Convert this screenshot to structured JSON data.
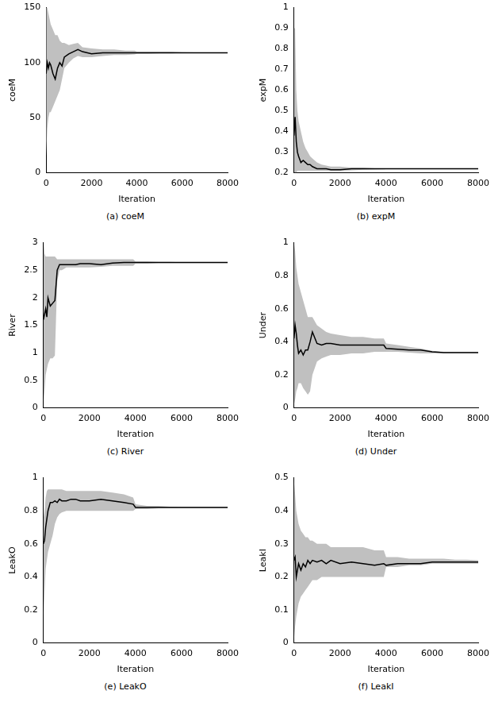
{
  "chart_data": [
    {
      "type": "line",
      "title": "(a) coeM",
      "x_label": "Iteration",
      "y_label": "coeM",
      "color": "#000000",
      "grid": false,
      "xlim": [
        0,
        8000
      ],
      "xticks": [
        0,
        2000,
        4000,
        6000,
        8000
      ],
      "ylim": [
        0,
        150
      ],
      "yticks": [
        0,
        50,
        100,
        150
      ],
      "x": [
        0,
        50,
        100,
        150,
        200,
        300,
        400,
        500,
        600,
        700,
        800,
        1000,
        1200,
        1400,
        1600,
        2000,
        2500,
        3000,
        3500,
        3900,
        4000,
        4500,
        5000,
        5500,
        6000,
        6500,
        7000,
        7500,
        8000
      ],
      "values": [
        90,
        100,
        95,
        100,
        98,
        90,
        85,
        95,
        100,
        97,
        105,
        108,
        110,
        112,
        110,
        108,
        109,
        109,
        109,
        109,
        109,
        109,
        109,
        109,
        109,
        109,
        109,
        109,
        109
      ],
      "band": {
        "color": "#c0c0c0",
        "upper": [
          160,
          150,
          145,
          140,
          135,
          130,
          125,
          125,
          120,
          118,
          118,
          116,
          117,
          118,
          114,
          113,
          112,
          112,
          111,
          111,
          110,
          110,
          110,
          110,
          109.5,
          109.3,
          109.2,
          109.2,
          109.2
        ],
        "lower": [
          15,
          40,
          50,
          55,
          55,
          60,
          65,
          70,
          75,
          85,
          95,
          100,
          104,
          106,
          105,
          105,
          106,
          107,
          107,
          107.5,
          108,
          108,
          108.5,
          108.5,
          108.8,
          108.8,
          108.8,
          108.8,
          108.8
        ]
      }
    },
    {
      "type": "line",
      "title": "(b) expM",
      "x_label": "Iteration",
      "y_label": "expM",
      "color": "#000000",
      "grid": false,
      "xlim": [
        0,
        8000
      ],
      "xticks": [
        0,
        2000,
        4000,
        6000,
        8000
      ],
      "ylim": [
        0.2,
        1
      ],
      "yticks": [
        0.2,
        0.3,
        0.4,
        0.5,
        0.6,
        0.7,
        0.8,
        0.9,
        1
      ],
      "x": [
        0,
        50,
        100,
        150,
        200,
        300,
        400,
        500,
        600,
        700,
        800,
        1000,
        1200,
        1400,
        1600,
        2000,
        2500,
        3000,
        3500,
        3900,
        4000,
        4500,
        5000,
        5500,
        6000,
        6500,
        7000,
        7500,
        8000
      ],
      "values": [
        0.38,
        0.47,
        0.35,
        0.3,
        0.28,
        0.25,
        0.26,
        0.25,
        0.24,
        0.24,
        0.23,
        0.22,
        0.22,
        0.22,
        0.215,
        0.215,
        0.22,
        0.22,
        0.22,
        0.22,
        0.22,
        0.22,
        0.22,
        0.22,
        0.22,
        0.22,
        0.22,
        0.22,
        0.22
      ],
      "band": {
        "color": "#c0c0c0",
        "upper": [
          0.9,
          0.9,
          0.6,
          0.5,
          0.45,
          0.4,
          0.35,
          0.32,
          0.3,
          0.28,
          0.27,
          0.25,
          0.24,
          0.235,
          0.23,
          0.23,
          0.225,
          0.225,
          0.222,
          0.222,
          0.222,
          0.222,
          0.222,
          0.222,
          0.222,
          0.222,
          0.222,
          0.222,
          0.222
        ],
        "lower": [
          0.2,
          0.2,
          0.2,
          0.21,
          0.21,
          0.21,
          0.21,
          0.21,
          0.21,
          0.21,
          0.21,
          0.21,
          0.21,
          0.21,
          0.21,
          0.21,
          0.212,
          0.215,
          0.216,
          0.217,
          0.218,
          0.219,
          0.219,
          0.219,
          0.219,
          0.219,
          0.219,
          0.219,
          0.219
        ]
      }
    },
    {
      "type": "line",
      "title": "(c) River",
      "x_label": "Iteration",
      "y_label": "River",
      "color": "#000000",
      "grid": false,
      "xlim": [
        0,
        8000
      ],
      "xticks": [
        0,
        2000,
        4000,
        6000,
        8000
      ],
      "ylim": [
        0,
        3
      ],
      "yticks": [
        0,
        0.5,
        1,
        1.5,
        2,
        2.5,
        3
      ],
      "x": [
        0,
        50,
        100,
        150,
        200,
        300,
        400,
        500,
        600,
        700,
        800,
        1000,
        1200,
        1400,
        1600,
        2000,
        2500,
        3000,
        3500,
        3900,
        4000,
        4500,
        5000,
        5500,
        6000,
        6500,
        7000,
        7500,
        8000
      ],
      "values": [
        1.6,
        1.7,
        1.8,
        1.65,
        2.0,
        1.85,
        1.9,
        1.95,
        2.5,
        2.6,
        2.6,
        2.6,
        2.6,
        2.6,
        2.62,
        2.62,
        2.6,
        2.63,
        2.64,
        2.64,
        2.64,
        2.64,
        2.64,
        2.64,
        2.64,
        2.64,
        2.64,
        2.64,
        2.64
      ],
      "band": {
        "color": "#c0c0c0",
        "upper": [
          3.1,
          2.8,
          2.75,
          2.75,
          2.75,
          2.75,
          2.75,
          2.75,
          2.7,
          2.7,
          2.7,
          2.7,
          2.7,
          2.7,
          2.7,
          2.7,
          2.7,
          2.7,
          2.7,
          2.7,
          2.66,
          2.66,
          2.65,
          2.65,
          2.645,
          2.645,
          2.645,
          2.645,
          2.645
        ],
        "lower": [
          0.1,
          0.3,
          0.6,
          0.7,
          0.8,
          0.9,
          0.9,
          0.95,
          2.3,
          2.5,
          2.5,
          2.55,
          2.55,
          2.55,
          2.55,
          2.55,
          2.56,
          2.58,
          2.58,
          2.58,
          2.62,
          2.62,
          2.63,
          2.63,
          2.63,
          2.63,
          2.63,
          2.63,
          2.63
        ]
      }
    },
    {
      "type": "line",
      "title": "(d) Under",
      "x_label": "Iteration",
      "y_label": "Under",
      "color": "#000000",
      "grid": false,
      "xlim": [
        0,
        8000
      ],
      "xticks": [
        0,
        2000,
        4000,
        6000,
        8000
      ],
      "ylim": [
        0,
        1
      ],
      "yticks": [
        0,
        0.2,
        0.4,
        0.6,
        0.8,
        1
      ],
      "x": [
        0,
        50,
        100,
        150,
        200,
        300,
        400,
        500,
        600,
        700,
        800,
        1000,
        1200,
        1400,
        1600,
        2000,
        2500,
        3000,
        3500,
        3900,
        4000,
        4500,
        5000,
        5500,
        6000,
        6500,
        7000,
        7500,
        8000
      ],
      "values": [
        0.42,
        0.5,
        0.45,
        0.38,
        0.33,
        0.35,
        0.32,
        0.35,
        0.35,
        0.4,
        0.46,
        0.39,
        0.38,
        0.39,
        0.39,
        0.38,
        0.38,
        0.38,
        0.38,
        0.38,
        0.36,
        0.355,
        0.35,
        0.35,
        0.34,
        0.335,
        0.335,
        0.335,
        0.335
      ],
      "band": {
        "color": "#c0c0c0",
        "upper": [
          1,
          0.95,
          0.85,
          0.8,
          0.75,
          0.7,
          0.65,
          0.6,
          0.55,
          0.55,
          0.55,
          0.5,
          0.48,
          0.46,
          0.45,
          0.44,
          0.43,
          0.43,
          0.42,
          0.42,
          0.39,
          0.38,
          0.37,
          0.36,
          0.345,
          0.34,
          0.338,
          0.338,
          0.338
        ],
        "lower": [
          0.02,
          0.05,
          0.1,
          0.12,
          0.15,
          0.15,
          0.12,
          0.1,
          0.08,
          0.1,
          0.2,
          0.28,
          0.3,
          0.31,
          0.32,
          0.32,
          0.33,
          0.33,
          0.34,
          0.34,
          0.34,
          0.34,
          0.335,
          0.33,
          0.33,
          0.332,
          0.332,
          0.332,
          0.332
        ]
      }
    },
    {
      "type": "line",
      "title": "(e) LeakO",
      "x_label": "Iteration",
      "y_label": "LeakO",
      "color": "#000000",
      "grid": false,
      "xlim": [
        0,
        8000
      ],
      "xticks": [
        0,
        2000,
        4000,
        6000,
        8000
      ],
      "ylim": [
        0,
        1
      ],
      "yticks": [
        0,
        0.2,
        0.4,
        0.6,
        0.8,
        1
      ],
      "x": [
        0,
        50,
        100,
        150,
        200,
        300,
        400,
        500,
        600,
        700,
        800,
        1000,
        1200,
        1400,
        1600,
        2000,
        2500,
        3000,
        3500,
        3900,
        4000,
        4500,
        5000,
        5500,
        6000,
        6500,
        7000,
        7500,
        8000
      ],
      "values": [
        0.6,
        0.62,
        0.7,
        0.75,
        0.8,
        0.85,
        0.85,
        0.86,
        0.85,
        0.87,
        0.86,
        0.86,
        0.87,
        0.87,
        0.86,
        0.86,
        0.87,
        0.86,
        0.85,
        0.84,
        0.82,
        0.82,
        0.82,
        0.82,
        0.82,
        0.82,
        0.82,
        0.82,
        0.82
      ],
      "band": {
        "color": "#c0c0c0",
        "upper": [
          0.75,
          0.8,
          0.88,
          0.92,
          0.93,
          0.93,
          0.93,
          0.93,
          0.93,
          0.93,
          0.93,
          0.92,
          0.92,
          0.92,
          0.92,
          0.92,
          0.92,
          0.91,
          0.9,
          0.88,
          0.84,
          0.83,
          0.83,
          0.825,
          0.822,
          0.822,
          0.822,
          0.822,
          0.822
        ],
        "lower": [
          0.15,
          0.3,
          0.45,
          0.5,
          0.55,
          0.6,
          0.65,
          0.72,
          0.76,
          0.78,
          0.79,
          0.8,
          0.8,
          0.8,
          0.8,
          0.8,
          0.8,
          0.8,
          0.8,
          0.8,
          0.81,
          0.81,
          0.815,
          0.818,
          0.818,
          0.818,
          0.818,
          0.818,
          0.818
        ]
      }
    },
    {
      "type": "line",
      "title": "(f) LeakI",
      "x_label": "Iteration",
      "y_label": "LeakI",
      "color": "#000000",
      "grid": false,
      "xlim": [
        0,
        8000
      ],
      "xticks": [
        0,
        2000,
        4000,
        6000,
        8000
      ],
      "ylim": [
        0,
        0.5
      ],
      "yticks": [
        0,
        0.1,
        0.2,
        0.3,
        0.4,
        0.5
      ],
      "x": [
        0,
        50,
        100,
        150,
        200,
        300,
        400,
        500,
        600,
        700,
        800,
        1000,
        1200,
        1400,
        1600,
        2000,
        2500,
        3000,
        3500,
        3900,
        4000,
        4500,
        5000,
        5500,
        6000,
        6500,
        7000,
        7500,
        8000
      ],
      "values": [
        0.25,
        0.26,
        0.2,
        0.22,
        0.24,
        0.22,
        0.24,
        0.23,
        0.25,
        0.24,
        0.25,
        0.245,
        0.25,
        0.24,
        0.25,
        0.24,
        0.245,
        0.24,
        0.235,
        0.24,
        0.235,
        0.24,
        0.24,
        0.24,
        0.245,
        0.245,
        0.245,
        0.245,
        0.245
      ],
      "band": {
        "color": "#c0c0c0",
        "upper": [
          0.49,
          0.45,
          0.4,
          0.38,
          0.36,
          0.34,
          0.33,
          0.32,
          0.32,
          0.31,
          0.31,
          0.3,
          0.3,
          0.3,
          0.29,
          0.29,
          0.29,
          0.29,
          0.28,
          0.28,
          0.26,
          0.26,
          0.255,
          0.255,
          0.255,
          0.255,
          0.252,
          0.252,
          0.25
        ],
        "lower": [
          0.01,
          0.05,
          0.08,
          0.1,
          0.12,
          0.14,
          0.15,
          0.16,
          0.17,
          0.18,
          0.19,
          0.19,
          0.2,
          0.2,
          0.2,
          0.2,
          0.2,
          0.2,
          0.2,
          0.2,
          0.23,
          0.23,
          0.235,
          0.235,
          0.24,
          0.24,
          0.24,
          0.24,
          0.24
        ]
      }
    }
  ]
}
